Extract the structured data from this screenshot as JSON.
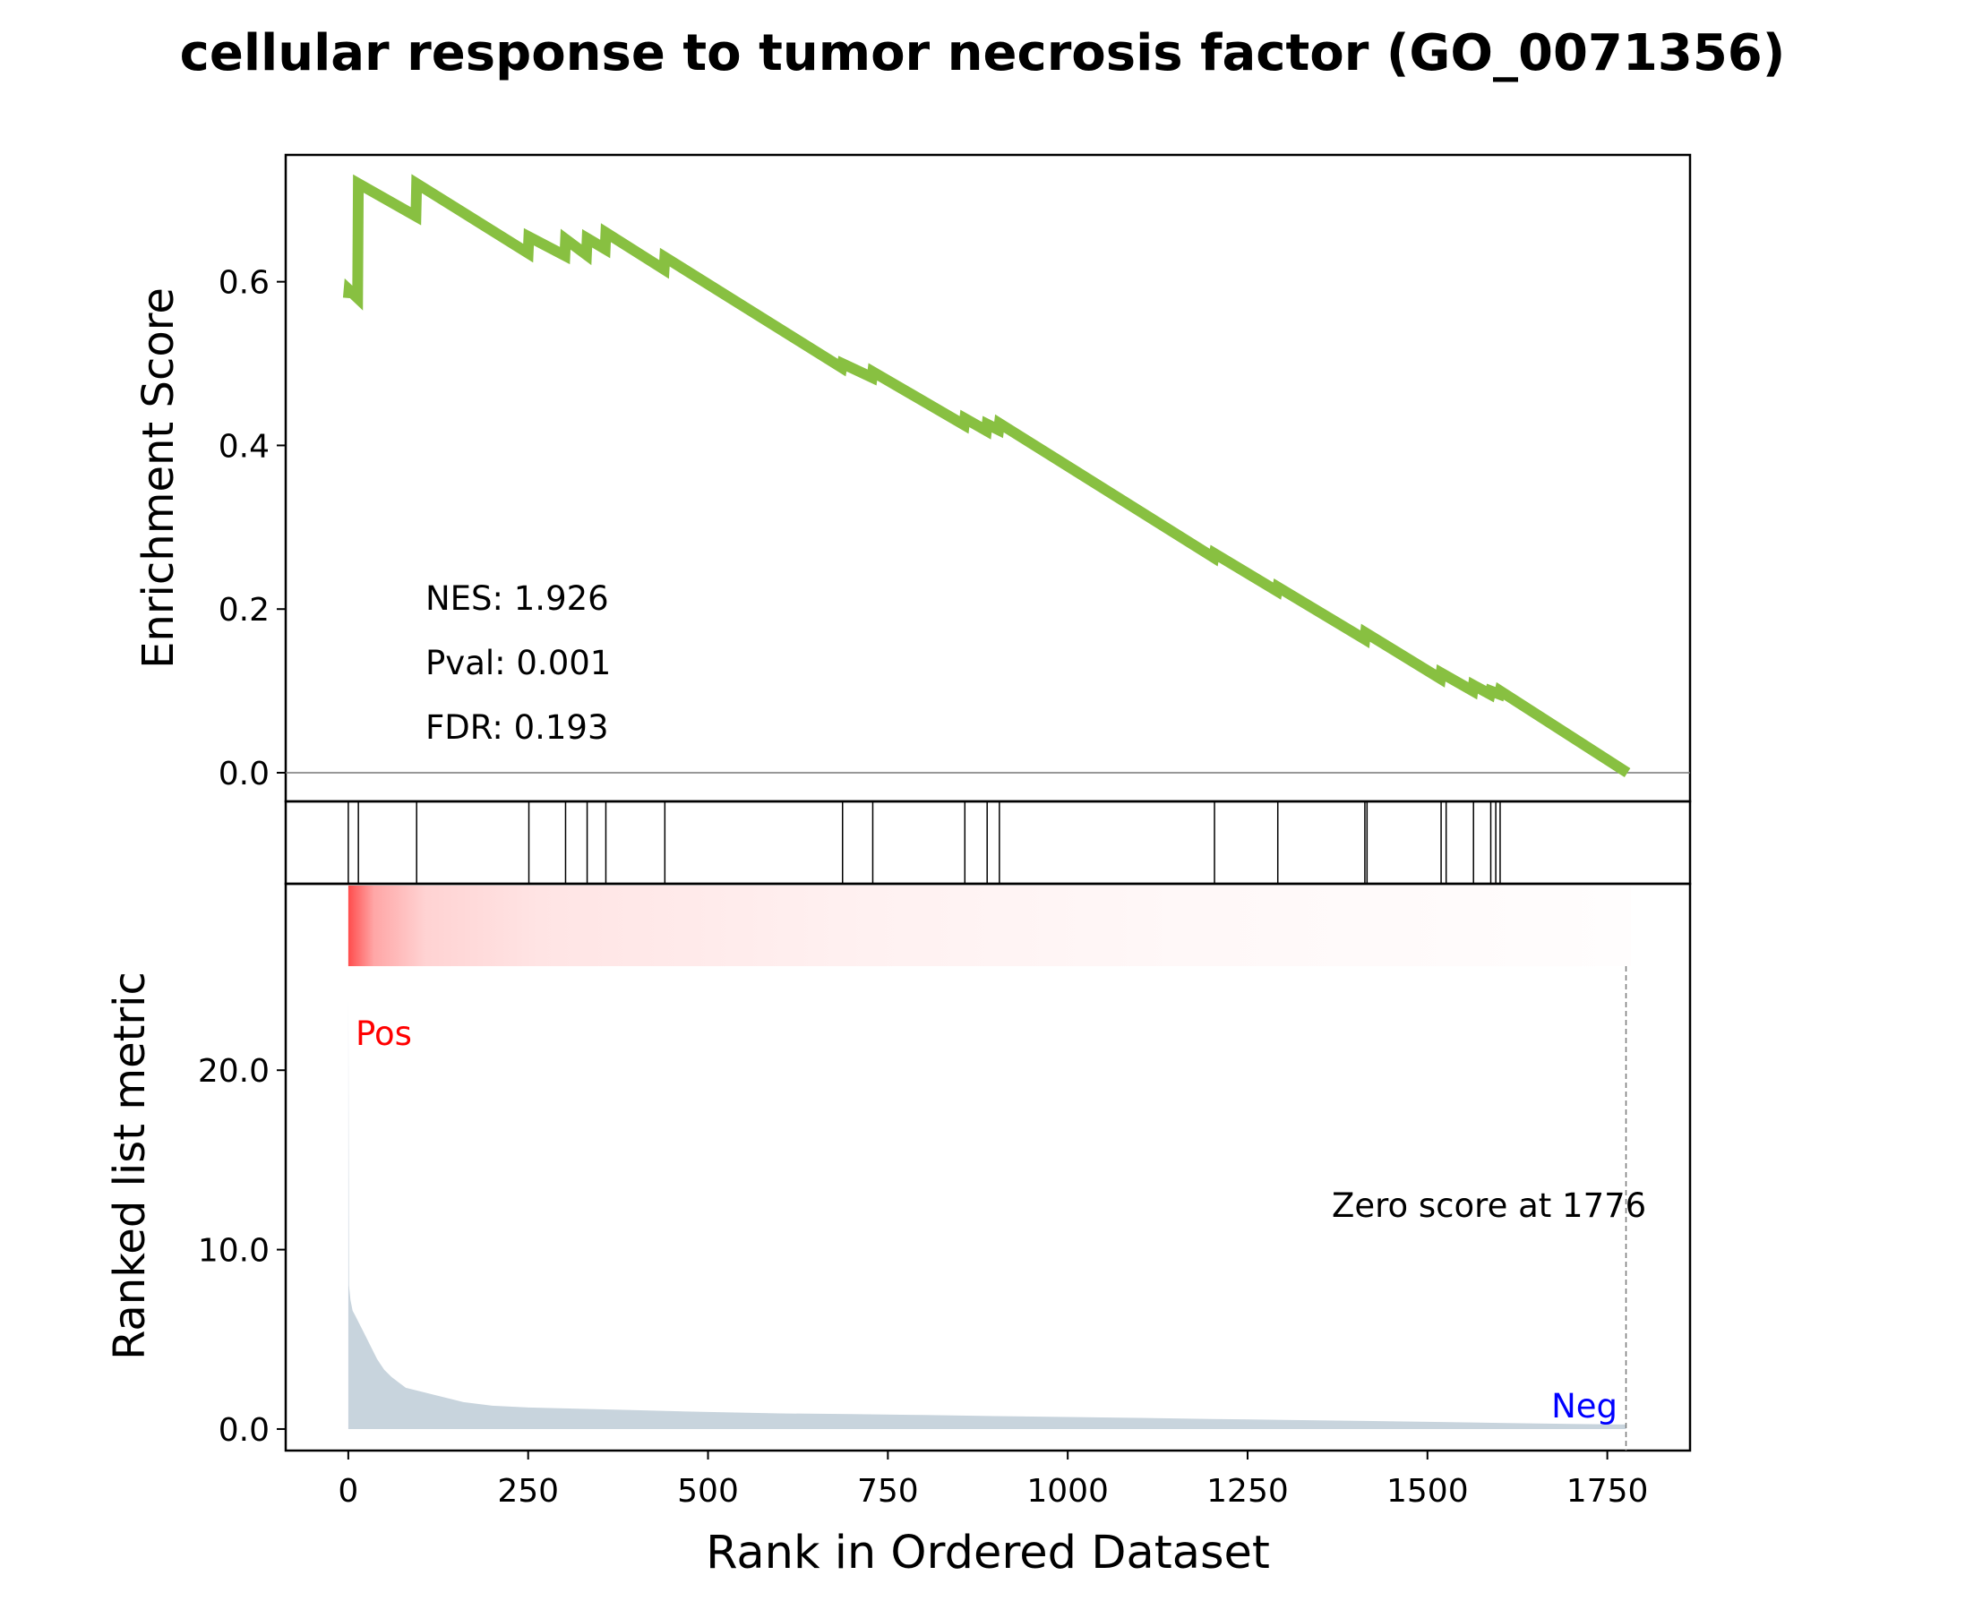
{
  "chart_data": {
    "type": "line",
    "title": "cellular response to tumor necrosis factor (GO_0071356)",
    "colors": {
      "es_line": "#88c041",
      "ranked_fill": "#c8d4dd",
      "pos": "#ff0000",
      "neg": "#0000ff",
      "heat": "#ff4d4d"
    },
    "enrichment": {
      "ylabel": "Enrichment Score",
      "ylim": [
        -0.035,
        0.755
      ],
      "yticks": [
        0.0,
        0.2,
        0.4,
        0.6
      ],
      "ytick_labels": [
        "0.0",
        "0.2",
        "0.4",
        "0.6"
      ],
      "x": [
        0,
        1,
        13,
        14,
        94,
        95,
        250,
        251,
        301,
        302,
        331,
        332,
        357,
        358,
        439,
        440,
        686,
        687,
        728,
        729,
        856,
        857,
        887,
        888,
        904,
        905,
        1203,
        1204,
        1291,
        1292,
        1413,
        1414,
        1518,
        1519,
        1563,
        1564,
        1587,
        1588,
        1600,
        1601,
        1778
      ],
      "y": [
        0.58,
        0.59,
        0.58,
        0.72,
        0.68,
        0.72,
        0.635,
        0.655,
        0.632,
        0.652,
        0.633,
        0.653,
        0.64,
        0.66,
        0.615,
        0.63,
        0.495,
        0.5,
        0.483,
        0.49,
        0.425,
        0.433,
        0.418,
        0.426,
        0.419,
        0.427,
        0.263,
        0.268,
        0.222,
        0.227,
        0.163,
        0.171,
        0.115,
        0.122,
        0.1,
        0.107,
        0.096,
        0.1,
        0.096,
        0.1,
        0.0
      ]
    },
    "stats": {
      "nes": "NES: 1.926",
      "pval": "Pval: 0.001",
      "fdr": "FDR: 0.193"
    },
    "hits": [
      0,
      14,
      95,
      251,
      302,
      332,
      358,
      440,
      687,
      729,
      857,
      888,
      905,
      1204,
      1292,
      1413,
      1416,
      1519,
      1526,
      1564,
      1588,
      1595,
      1601
    ],
    "ranked": {
      "ylabel": "Ranked list metric",
      "ylim": [
        -1.2,
        25.8
      ],
      "yticks": [
        0.0,
        10.0,
        20.0
      ],
      "ytick_labels": [
        "0.0",
        "10.0",
        "20.0"
      ],
      "x": [
        0,
        1,
        3,
        6,
        10,
        15,
        20,
        30,
        40,
        50,
        60,
        70,
        80,
        100,
        130,
        160,
        200,
        250,
        300,
        400,
        500,
        600,
        700,
        800,
        900,
        1000,
        1100,
        1200,
        1300,
        1400,
        1500,
        1600,
        1700,
        1776
      ],
      "values": [
        24.5,
        8.0,
        7.2,
        6.6,
        6.3,
        5.9,
        5.5,
        4.7,
        3.9,
        3.3,
        2.9,
        2.6,
        2.3,
        2.1,
        1.8,
        1.5,
        1.3,
        1.2,
        1.15,
        1.05,
        0.95,
        0.87,
        0.83,
        0.78,
        0.72,
        0.67,
        0.62,
        0.56,
        0.51,
        0.46,
        0.4,
        0.34,
        0.28,
        0.25
      ],
      "zero_line": 1776,
      "zero_label": "Zero score at 1776",
      "pos_label": "Pos",
      "neg_label": "Neg"
    },
    "xlabel": "Rank in Ordered Dataset",
    "xlim": [
      -87,
      1865
    ],
    "xticks": [
      0,
      250,
      500,
      750,
      1000,
      1250,
      1500,
      1750
    ],
    "xtick_labels": [
      "0",
      "250",
      "500",
      "750",
      "1000",
      "1250",
      "1500",
      "1750"
    ]
  }
}
